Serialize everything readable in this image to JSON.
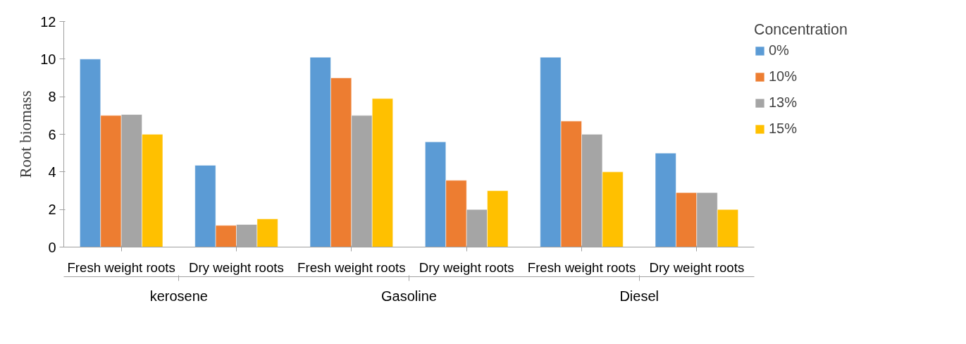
{
  "chart_data": {
    "type": "bar",
    "ylabel": "Root biomass",
    "legend_title": "Concentration",
    "categories": [
      "Fresh weight roots",
      "Dry weight roots",
      "Fresh weight roots",
      "Dry weight roots",
      "Fresh weight roots",
      "Dry weight roots"
    ],
    "annotations": [
      "kerosene",
      "Gasoline",
      "Diesel"
    ],
    "series": [
      {
        "name": "0%",
        "color": "#5b9bd5",
        "values": [
          10.0,
          4.35,
          10.1,
          5.6,
          10.1,
          5.0
        ]
      },
      {
        "name": "10%",
        "color": "#ed7d31",
        "values": [
          7.0,
          1.15,
          9.0,
          3.55,
          6.7,
          2.9
        ]
      },
      {
        "name": "13%",
        "color": "#a5a5a5",
        "values": [
          7.05,
          1.2,
          7.0,
          2.0,
          6.0,
          2.9
        ]
      },
      {
        "name": "15%",
        "color": "#ffc000",
        "values": [
          6.0,
          1.5,
          7.9,
          3.0,
          4.0,
          2.0
        ]
      }
    ],
    "ylim": [
      0,
      12
    ],
    "yticks": [
      0,
      2,
      4,
      6,
      8,
      10,
      12
    ],
    "grid": false,
    "legend": "right"
  }
}
